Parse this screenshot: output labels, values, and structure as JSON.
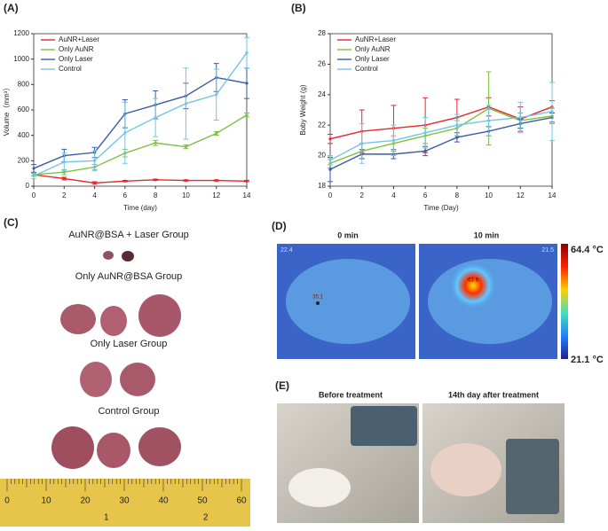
{
  "chart_data": [
    {
      "type": "line",
      "panel_label": "(A)",
      "xlabel": "Time (day)",
      "ylabel": "Volume（mm³）",
      "x": [
        0,
        2,
        4,
        6,
        8,
        10,
        12,
        14
      ],
      "xlim": [
        0,
        14
      ],
      "xticks": [
        0,
        2,
        4,
        6,
        8,
        10,
        12,
        14
      ],
      "ylim": [
        0,
        1200
      ],
      "yticks": [
        0,
        200,
        400,
        600,
        800,
        1000,
        1200
      ],
      "legend": "upper-left",
      "series": [
        {
          "name": "AuNR+Laser",
          "color": "#e8272a",
          "values": [
            90,
            60,
            25,
            40,
            50,
            45,
            45,
            40
          ],
          "errors": [
            10,
            10,
            10,
            5,
            5,
            5,
            5,
            5
          ]
        },
        {
          "name": "Only AuNR",
          "color": "#7cc242",
          "values": [
            90,
            110,
            150,
            260,
            340,
            310,
            415,
            560
          ],
          "errors": [
            10,
            20,
            20,
            30,
            20,
            15,
            15,
            15
          ]
        },
        {
          "name": "Only Laser",
          "color": "#3a5ba9",
          "values": [
            140,
            240,
            265,
            570,
            640,
            710,
            855,
            810
          ],
          "errors": [
            30,
            50,
            40,
            110,
            110,
            100,
            110,
            120
          ]
        },
        {
          "name": "Control",
          "color": "#70c6e6",
          "values": [
            80,
            190,
            200,
            420,
            540,
            650,
            720,
            1050
          ],
          "errors": [
            20,
            70,
            80,
            240,
            150,
            280,
            200,
            120
          ]
        }
      ]
    },
    {
      "type": "line",
      "panel_label": "(B)",
      "xlabel": "Time (Day)",
      "ylabel": "Boby Weight (g)",
      "x": [
        0,
        2,
        4,
        6,
        8,
        10,
        12,
        14
      ],
      "xlim": [
        0,
        14
      ],
      "xticks": [
        0,
        2,
        4,
        6,
        8,
        10,
        12,
        14
      ],
      "ylim": [
        18,
        28
      ],
      "yticks": [
        18,
        20,
        22,
        24,
        26,
        28
      ],
      "legend": "upper-left",
      "series": [
        {
          "name": "AuNR+Laser",
          "color": "#e8272a",
          "values": [
            21.1,
            21.6,
            21.8,
            22.0,
            22.5,
            23.2,
            22.4,
            23.2
          ],
          "errors": [
            0.3,
            1.4,
            1.5,
            1.8,
            1.2,
            0.6,
            0.8,
            0.4
          ]
        },
        {
          "name": "Only AuNR",
          "color": "#7cc242",
          "values": [
            19.5,
            20.3,
            20.8,
            21.3,
            21.8,
            23.1,
            22.3,
            22.6
          ],
          "errors": [
            0.3,
            0.5,
            0.5,
            0.5,
            0.5,
            2.4,
            0.5,
            0.5
          ]
        },
        {
          "name": "Only Laser",
          "color": "#3a5ba9",
          "values": [
            19.1,
            20.1,
            20.1,
            20.3,
            21.2,
            21.6,
            22.1,
            22.5
          ],
          "errors": [
            0.8,
            0.3,
            0.3,
            0.3,
            0.3,
            0.3,
            0.3,
            0.3
          ]
        },
        {
          "name": "Control",
          "color": "#70c6e6",
          "values": [
            19.7,
            20.8,
            21.0,
            21.5,
            22.0,
            22.3,
            22.5,
            22.9
          ],
          "errors": [
            0.3,
            1.3,
            1.0,
            1.0,
            0.7,
            1.0,
            1.0,
            1.9
          ]
        }
      ]
    }
  ],
  "panel_c": {
    "label": "(C)",
    "groups": [
      "AuNR@BSA + Laser Group",
      "Only AuNR@BSA Group",
      "Only Laser Group",
      "Control Group"
    ],
    "ruler_cm": [
      "0",
      "10",
      "20",
      "30",
      "40",
      "50",
      "60"
    ],
    "ruler_in": [
      "1",
      "2"
    ]
  },
  "panel_d": {
    "label": "(D)",
    "left_title": "0 min",
    "right_title": "10 min",
    "left_corner": "22.4",
    "right_corner": "21.5",
    "left_spot": "35.1",
    "right_spot": "63.9",
    "scale_max": "64.4 °C",
    "scale_min": "21.1 °C"
  },
  "panel_e": {
    "label": "(E)",
    "left_title": "Before treatment",
    "right_title": "14th day after treatment"
  }
}
